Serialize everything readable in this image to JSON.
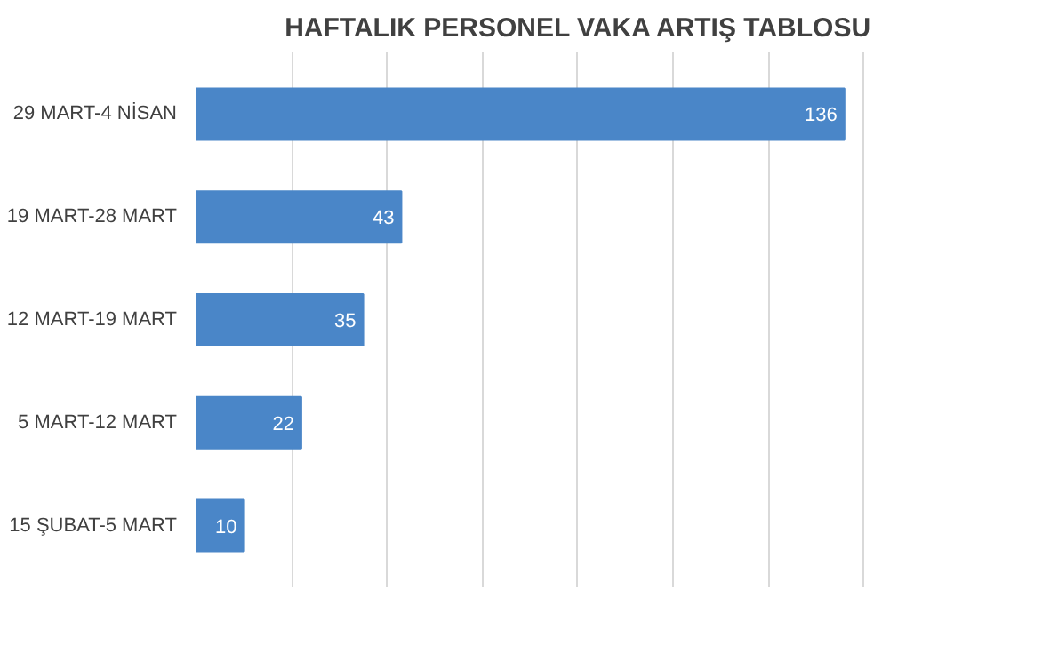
{
  "chart_data": {
    "type": "bar",
    "orientation": "horizontal",
    "title": "HAFTALIK PERSONEL VAKA ARTIŞ TABLOSU",
    "categories": [
      "29 MART-4 NİSAN",
      "19 MART-28 MART",
      "12 MART-19 MART",
      "5 MART-12 MART",
      "15 ŞUBAT-5 MART"
    ],
    "values": [
      136,
      43,
      35,
      22,
      10
    ],
    "color": "#4a86c8",
    "data_labels": true,
    "xticks": [
      {
        "value": 20,
        "label": null
      },
      {
        "value": 40,
        "label": null
      },
      {
        "value": 60,
        "label": null
      },
      {
        "value": 80,
        "label": null
      },
      {
        "value": 100,
        "label": null
      },
      {
        "value": 120,
        "label": null
      },
      {
        "value": 140,
        "label": null
      }
    ],
    "grid": "x",
    "tick_labels": "y"
  }
}
